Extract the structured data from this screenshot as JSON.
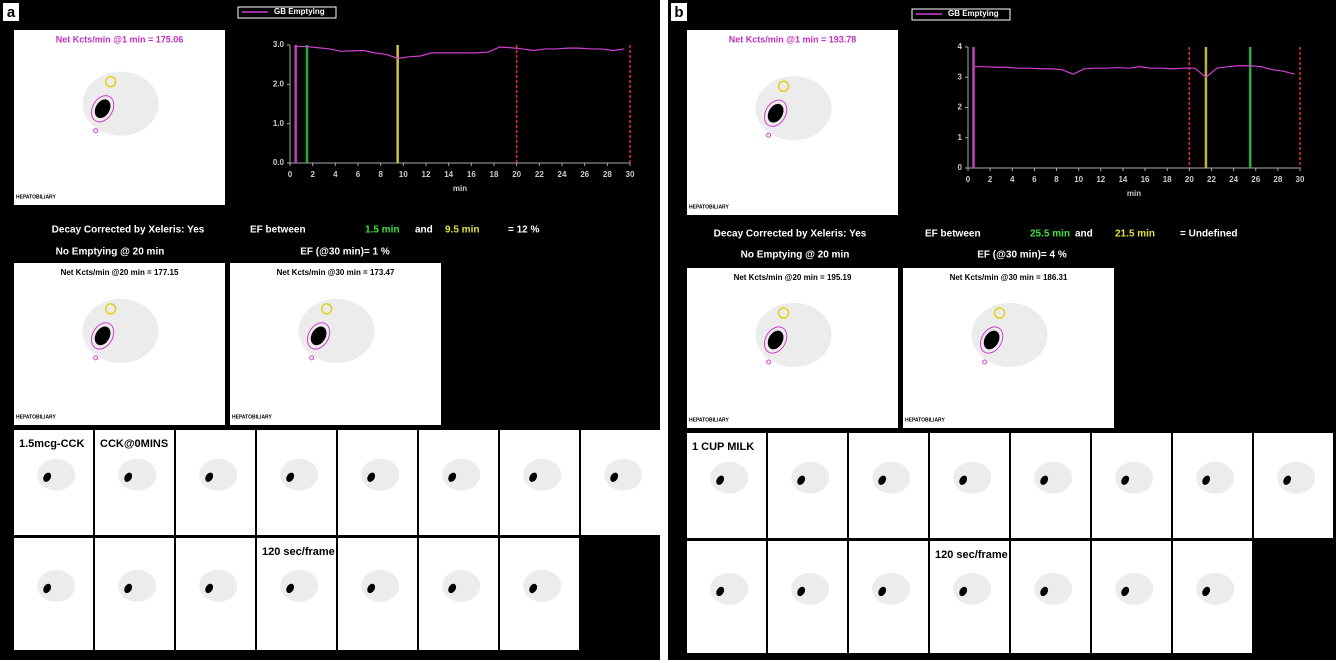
{
  "panels": [
    {
      "label": "a",
      "summary_image": {
        "title": "Net Kcts/min @1 min = 175.06",
        "caption": "HEPATOBILIARY"
      },
      "chart": {
        "type": "line",
        "xlabel": "min",
        "x": [
          0.5,
          1.5,
          2.5,
          3.5,
          4.5,
          5.5,
          6.5,
          7.5,
          8.5,
          9.5,
          10.5,
          11.5,
          12.5,
          13.5,
          14.5,
          15.5,
          16.5,
          17.5,
          18.5,
          19.5,
          20.5,
          21.5,
          22.5,
          23.5,
          24.5,
          25.5,
          26.5,
          27.5,
          28.5,
          29.5
        ],
        "series": [
          {
            "name": "GB Emptying",
            "color": "#d040d0",
            "values": [
              2.97,
              2.96,
              2.93,
              2.9,
              2.84,
              2.85,
              2.86,
              2.8,
              2.76,
              2.66,
              2.7,
              2.72,
              2.8,
              2.8,
              2.8,
              2.8,
              2.8,
              2.82,
              2.95,
              2.93,
              2.9,
              2.86,
              2.9,
              2.9,
              2.92,
              2.92,
              2.9,
              2.9,
              2.86,
              2.9
            ]
          }
        ],
        "xlim": [
          0,
          30
        ],
        "ylim": [
          0,
          3
        ],
        "xticks": [
          0,
          2,
          4,
          6,
          8,
          10,
          12,
          14,
          16,
          18,
          20,
          22,
          24,
          26,
          28,
          30
        ],
        "yticks": [
          {
            "value": 0,
            "label": "0.0"
          },
          {
            "value": 1,
            "label": "1.0"
          },
          {
            "value": 2,
            "label": "2.0"
          },
          {
            "value": 3,
            "label": "3.0"
          }
        ],
        "markers": [
          {
            "x": 0.5,
            "color": "#c040c0",
            "style": "solid"
          },
          {
            "x": 1.5,
            "color": "#20b040",
            "style": "solid"
          },
          {
            "x": 9.5,
            "color": "#d0c040",
            "style": "solid"
          },
          {
            "x": 20,
            "color": "#e03030",
            "style": "dashed"
          },
          {
            "x": 30,
            "color": "#e03030",
            "style": "dashed"
          }
        ]
      },
      "decay": "Decay Corrected by Xeleris: Yes",
      "ef": {
        "prefix": "EF between",
        "start": "1.5 min",
        "join": "and",
        "end": "9.5 min",
        "result": "= 12 %"
      },
      "emptying": "No Emptying @ 20 min",
      "ef30": "EF (@30 min)= 1 %",
      "images": [
        {
          "title": "Net Kcts/min @20 min = 177.15",
          "caption": "HEPATOBILIARY"
        },
        {
          "title": "Net Kcts/min @30 min = 173.47",
          "caption": "HEPATOBILIARY"
        }
      ],
      "frame_notes": [
        "1.5mcg-CCK",
        "CCK@0MINS",
        "120 sec/frame"
      ]
    },
    {
      "label": "b",
      "summary_image": {
        "title": "Net Kcts/min @1 min = 193.78",
        "caption": "HEPATOBILIARY"
      },
      "chart": {
        "type": "line",
        "xlabel": "min",
        "x": [
          0.5,
          1.5,
          2.5,
          3.5,
          4.5,
          5.5,
          6.5,
          7.5,
          8.5,
          9.5,
          10.5,
          11.5,
          12.5,
          13.5,
          14.5,
          15.5,
          16.5,
          17.5,
          18.5,
          19.5,
          20.5,
          21.5,
          22.5,
          23.5,
          24.5,
          25.5,
          26.5,
          27.5,
          28.5,
          29.5
        ],
        "series": [
          {
            "name": "GB Emptying",
            "color": "#d040d0",
            "values": [
              3.35,
              3.35,
              3.33,
              3.33,
              3.3,
              3.3,
              3.28,
              3.28,
              3.25,
              3.1,
              3.28,
              3.3,
              3.3,
              3.32,
              3.3,
              3.35,
              3.3,
              3.3,
              3.28,
              3.3,
              3.3,
              3.0,
              3.3,
              3.35,
              3.38,
              3.38,
              3.35,
              3.25,
              3.2,
              3.1
            ]
          }
        ],
        "xlim": [
          0,
          30
        ],
        "ylim": [
          0,
          4
        ],
        "xticks": [
          0,
          2,
          4,
          6,
          8,
          10,
          12,
          14,
          16,
          18,
          20,
          22,
          24,
          26,
          28,
          30
        ],
        "yticks": [
          0,
          1,
          2,
          3,
          4
        ],
        "markers": [
          {
            "x": 0.5,
            "color": "#c040c0",
            "style": "solid"
          },
          {
            "x": 20,
            "color": "#e03030",
            "style": "dashed"
          },
          {
            "x": 21.5,
            "color": "#c0b040",
            "style": "solid"
          },
          {
            "x": 25.5,
            "color": "#20b040",
            "style": "solid"
          },
          {
            "x": 30,
            "color": "#e03030",
            "style": "dashed"
          }
        ]
      },
      "decay": "Decay Corrected by Xeleris: Yes",
      "ef": {
        "prefix": "EF between",
        "start": "25.5 min",
        "join": "and",
        "end": "21.5 min",
        "result": "= Undefined"
      },
      "emptying": "No Emptying @ 20 min",
      "ef30": "EF (@30 min)= 4 %",
      "images": [
        {
          "title": "Net Kcts/min @20 min = 195.19",
          "caption": "HEPATOBILIARY"
        },
        {
          "title": "Net Kcts/min @30 min = 186.31",
          "caption": "HEPATOBILIARY"
        }
      ],
      "frame_notes": [
        "1 CUP MILK",
        "120 sec/frame"
      ]
    }
  ]
}
